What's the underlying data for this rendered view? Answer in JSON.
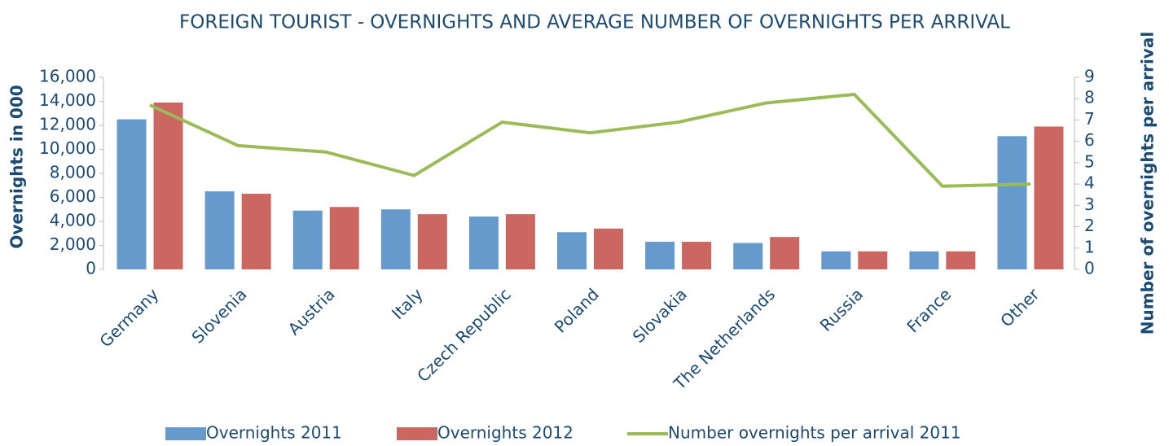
{
  "chart_data": {
    "type": "bar_line",
    "title": "FOREIGN TOURIST - OVERNIGHTS AND AVERAGE NUMBER OF OVERNIGHTS PER ARRIVAL",
    "y_label": "Overnights in 000",
    "y2_label": "Number of overnights per arrival",
    "categories": [
      "Germany",
      "Slovenia",
      "Austria",
      "Italy",
      "Czech Republic",
      "Poland",
      "Slovakia",
      "The Netherlands",
      "Russia",
      "France",
      "Other"
    ],
    "series": [
      {
        "name": "Overnights 2011",
        "type": "bar",
        "color": "#6699cc",
        "values": [
          12500,
          6500,
          4900,
          5000,
          4400,
          3100,
          2300,
          2200,
          1500,
          1500,
          11100
        ]
      },
      {
        "name": "Overnights 2012",
        "type": "bar",
        "color": "#cc6661",
        "values": [
          13900,
          6300,
          5200,
          4600,
          4600,
          3400,
          2300,
          2700,
          1500,
          1500,
          11900
        ]
      },
      {
        "name": "Number overnights per arrival 2011",
        "type": "line",
        "axis": "y2",
        "color": "#9bbb59",
        "values": [
          7.7,
          5.8,
          5.5,
          4.4,
          6.9,
          6.4,
          6.9,
          7.8,
          8.2,
          3.9,
          4.0
        ]
      }
    ],
    "ylim": [
      0,
      16000
    ],
    "yticks": [
      0,
      {
        "value": 2000,
        "label": "2,000"
      },
      {
        "value": 4000,
        "label": "4,000"
      },
      {
        "value": 6000,
        "label": "6,000"
      },
      {
        "value": 8000,
        "label": "8,000"
      },
      {
        "value": 10000,
        "label": "10,000"
      },
      {
        "value": 12000,
        "label": "12,000"
      },
      {
        "value": 14000,
        "label": "14,000"
      },
      {
        "value": 16000,
        "label": "16,000"
      }
    ],
    "y2lim": [
      0,
      9
    ],
    "y2ticks": [
      0,
      1,
      2,
      3,
      4,
      5,
      6,
      7,
      8,
      9
    ],
    "legend": "bottom"
  }
}
